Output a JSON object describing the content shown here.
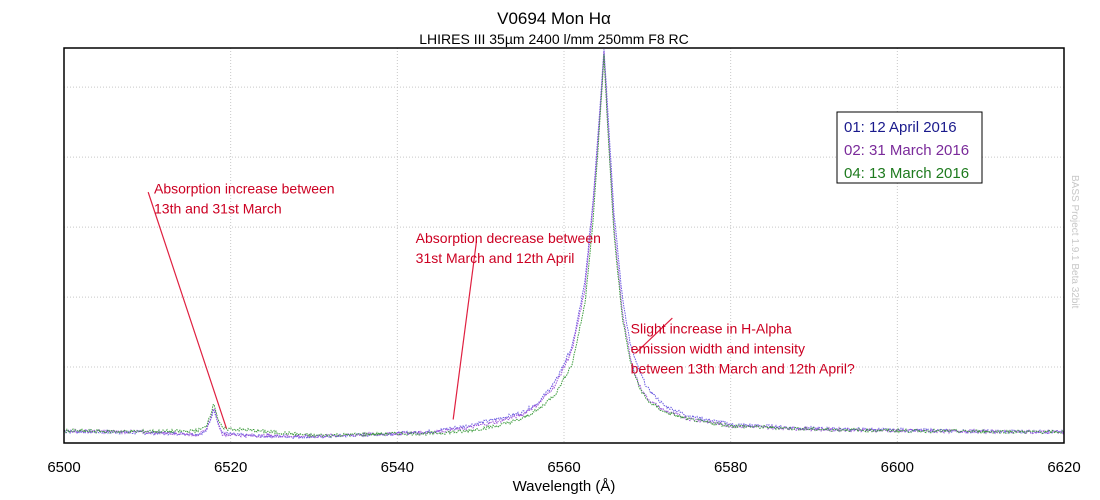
{
  "chart_data": {
    "type": "line",
    "title": "V0694 Mon   Hα",
    "subtitle": "LHIRES III   35µm   2400 l/mm   250mm F8 RC",
    "xlabel": "Wavelength (Å)",
    "ylabel": "",
    "xlim": [
      6500,
      6620
    ],
    "ylim": [
      0,
      5.56
    ],
    "x_ticks": [
      "6500",
      "6520",
      "6540",
      "6560",
      "6580",
      "6600",
      "6620"
    ],
    "x_tick_values": [
      6500,
      6520,
      6540,
      6560,
      6580,
      6600,
      6620
    ],
    "y_grid_values": [
      1,
      2,
      3,
      4,
      5
    ],
    "y_tick_labels_shown": false,
    "grid": true,
    "legend_position": "top-right",
    "credit": "BASS Project 1.9.1 Beta 32bit",
    "series": [
      {
        "name": "01: 12 April 2016",
        "color": "#1a1a8c",
        "line_color": "#6a5ae0",
        "points": [
          [
            6500,
            0.08
          ],
          [
            6505,
            0.07
          ],
          [
            6510,
            0.06
          ],
          [
            6514,
            0.05
          ],
          [
            6516,
            0.04
          ],
          [
            6517,
            0.08
          ],
          [
            6517.5,
            0.22
          ],
          [
            6518,
            0.4
          ],
          [
            6518.5,
            0.2
          ],
          [
            6519,
            0.05
          ],
          [
            6522,
            0.02
          ],
          [
            6530,
            0.0
          ],
          [
            6540,
            0.05
          ],
          [
            6544,
            0.08
          ],
          [
            6548,
            0.15
          ],
          [
            6552,
            0.26
          ],
          [
            6555,
            0.35
          ],
          [
            6557,
            0.5
          ],
          [
            6559,
            0.8
          ],
          [
            6561,
            1.3
          ],
          [
            6562.5,
            2.2
          ],
          [
            6563.5,
            3.4
          ],
          [
            6564.3,
            4.7
          ],
          [
            6564.8,
            5.55
          ],
          [
            6565.3,
            4.6
          ],
          [
            6566,
            3.2
          ],
          [
            6567,
            2.0
          ],
          [
            6568,
            1.3
          ],
          [
            6569,
            0.95
          ],
          [
            6570,
            0.7
          ],
          [
            6572,
            0.45
          ],
          [
            6575,
            0.3
          ],
          [
            6580,
            0.18
          ],
          [
            6590,
            0.12
          ],
          [
            6600,
            0.1
          ],
          [
            6610,
            0.08
          ],
          [
            6620,
            0.07
          ]
        ]
      },
      {
        "name": "02: 31 March 2016",
        "color": "#7a2a9a",
        "line_color": "#9a50d8",
        "points": [
          [
            6500,
            0.09
          ],
          [
            6505,
            0.08
          ],
          [
            6510,
            0.07
          ],
          [
            6514,
            0.05
          ],
          [
            6516,
            0.03
          ],
          [
            6517,
            0.08
          ],
          [
            6517.5,
            0.25
          ],
          [
            6518,
            0.42
          ],
          [
            6518.5,
            0.2
          ],
          [
            6519,
            0.04
          ],
          [
            6522,
            0.02
          ],
          [
            6530,
            0.01
          ],
          [
            6540,
            0.05
          ],
          [
            6544,
            0.07
          ],
          [
            6548,
            0.12
          ],
          [
            6552,
            0.22
          ],
          [
            6555,
            0.32
          ],
          [
            6557,
            0.48
          ],
          [
            6559,
            0.75
          ],
          [
            6561,
            1.25
          ],
          [
            6562.5,
            2.1
          ],
          [
            6563.5,
            3.3
          ],
          [
            6564.3,
            4.6
          ],
          [
            6564.8,
            5.5
          ],
          [
            6565.3,
            4.4
          ],
          [
            6566,
            3.0
          ],
          [
            6567,
            1.8
          ],
          [
            6568,
            1.1
          ],
          [
            6569,
            0.75
          ],
          [
            6570,
            0.55
          ],
          [
            6572,
            0.38
          ],
          [
            6575,
            0.26
          ],
          [
            6580,
            0.16
          ],
          [
            6590,
            0.11
          ],
          [
            6600,
            0.09
          ],
          [
            6610,
            0.08
          ],
          [
            6620,
            0.07
          ]
        ]
      },
      {
        "name": "04: 13 March 2016",
        "color": "#1e7a1e",
        "line_color": "#3a9a3a",
        "points": [
          [
            6500,
            0.09
          ],
          [
            6505,
            0.08
          ],
          [
            6510,
            0.08
          ],
          [
            6514,
            0.08
          ],
          [
            6516,
            0.09
          ],
          [
            6517,
            0.14
          ],
          [
            6517.5,
            0.3
          ],
          [
            6518,
            0.48
          ],
          [
            6518.5,
            0.25
          ],
          [
            6519,
            0.12
          ],
          [
            6522,
            0.1
          ],
          [
            6526,
            0.06
          ],
          [
            6530,
            0.02
          ],
          [
            6540,
            0.05
          ],
          [
            6544,
            0.05
          ],
          [
            6548,
            0.08
          ],
          [
            6552,
            0.16
          ],
          [
            6555,
            0.26
          ],
          [
            6557,
            0.4
          ],
          [
            6559,
            0.62
          ],
          [
            6561,
            1.05
          ],
          [
            6562.5,
            1.9
          ],
          [
            6563.5,
            3.1
          ],
          [
            6564.3,
            4.5
          ],
          [
            6564.8,
            5.45
          ],
          [
            6565.3,
            4.3
          ],
          [
            6566,
            2.9
          ],
          [
            6567,
            1.7
          ],
          [
            6568,
            1.05
          ],
          [
            6569,
            0.72
          ],
          [
            6570,
            0.52
          ],
          [
            6572,
            0.36
          ],
          [
            6575,
            0.25
          ],
          [
            6580,
            0.16
          ],
          [
            6590,
            0.11
          ],
          [
            6600,
            0.09
          ],
          [
            6610,
            0.08
          ],
          [
            6620,
            0.07
          ]
        ]
      }
    ],
    "annotations": [
      {
        "lines": [
          "Absorption increase between",
          "13th and 31st March"
        ],
        "text_at": [
          6510.8,
          3.48
        ],
        "arrow_from": [
          6510.1,
          3.5
        ],
        "arrow_to": [
          6519.5,
          0.12
        ]
      },
      {
        "lines": [
          "Absorption decrease between",
          "31st March and 12th April"
        ],
        "text_at": [
          6542.2,
          2.77
        ],
        "arrow_from": [
          6549.5,
          2.8
        ],
        "arrow_to": [
          6546.7,
          0.25
        ]
      },
      {
        "lines": [
          "Slight increase in H-Alpha",
          "emission width and intensity",
          "between 13th March and 12th April?"
        ],
        "text_at": [
          6568.0,
          1.48
        ],
        "arrow_from": [
          6573.0,
          1.7
        ],
        "arrow_to": [
          6568.6,
          1.2
        ]
      }
    ]
  }
}
